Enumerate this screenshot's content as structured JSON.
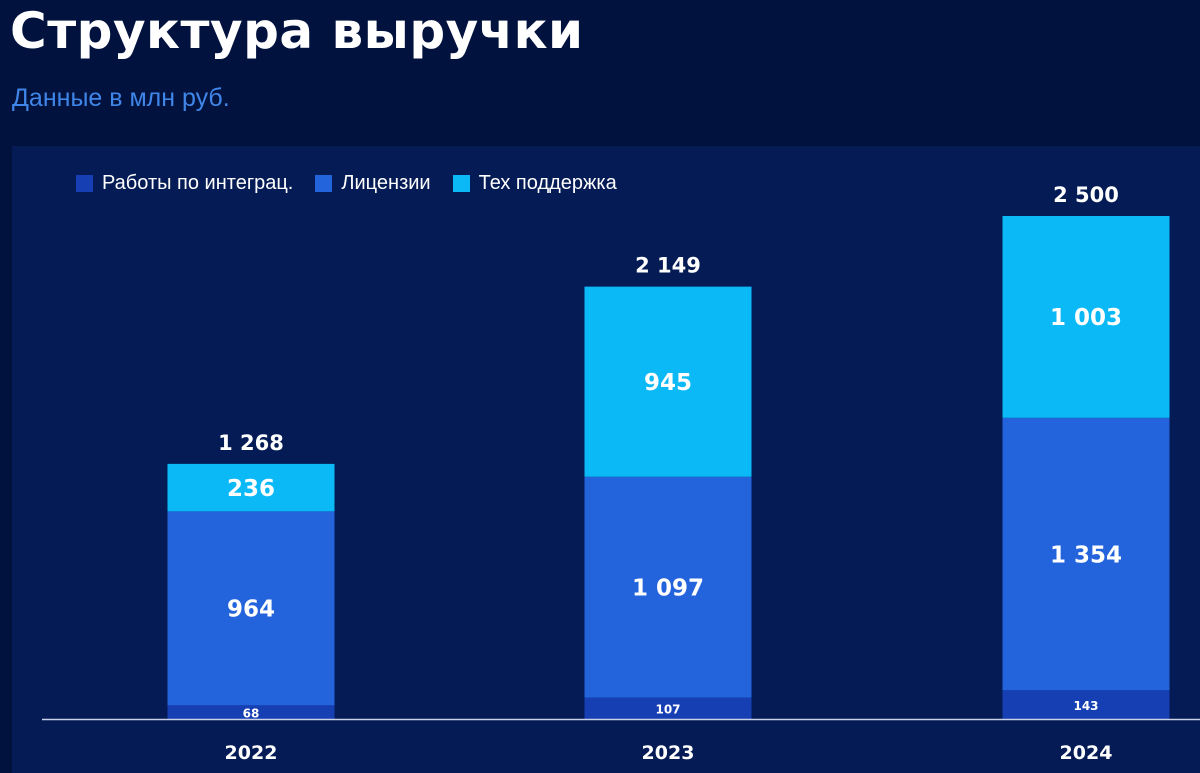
{
  "title": "Структура выручки",
  "subtitle": "Данные в млн руб.",
  "colors": {
    "background": "#01123f",
    "panel": "#041b55",
    "integration": "#163fb4",
    "licenses": "#2363dc",
    "support": "#0bb9f6",
    "axis": "#c9d2e6"
  },
  "chart_data": {
    "type": "bar",
    "stacked": true,
    "categories": [
      "2022",
      "2023",
      "2024"
    ],
    "series": [
      {
        "name": "Работы по интеграц.",
        "values": [
          68,
          107,
          143
        ],
        "labels": [
          "68",
          "107",
          "143"
        ],
        "color": "#163fb4"
      },
      {
        "name": "Лицензии",
        "values": [
          964,
          1097,
          1354
        ],
        "labels": [
          "964",
          "1 097",
          "1 354"
        ],
        "color": "#2363dc"
      },
      {
        "name": "Тех поддержка",
        "values": [
          236,
          945,
          1003
        ],
        "labels": [
          "236",
          "945",
          "1 003"
        ],
        "color": "#0bb9f6"
      }
    ],
    "totals": [
      1268,
      2149,
      2500
    ],
    "total_labels": [
      "1 268",
      "2 149",
      "2 500"
    ],
    "legend_position": "top-left",
    "grid": false
  }
}
